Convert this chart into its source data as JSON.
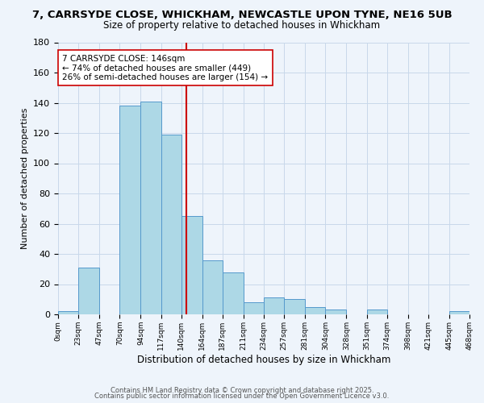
{
  "title1": "7, CARRSYDE CLOSE, WHICKHAM, NEWCASTLE UPON TYNE, NE16 5UB",
  "title2": "Size of property relative to detached houses in Whickham",
  "xlabel": "Distribution of detached houses by size in Whickham",
  "ylabel": "Number of detached properties",
  "bin_edges": [
    0,
    23,
    47,
    70,
    94,
    117,
    140,
    164,
    187,
    211,
    234,
    257,
    281,
    304,
    328,
    351,
    374,
    398,
    421,
    445,
    468
  ],
  "bin_counts": [
    2,
    31,
    0,
    138,
    141,
    119,
    65,
    36,
    28,
    8,
    11,
    10,
    5,
    3,
    0,
    3,
    0,
    0,
    0,
    2
  ],
  "bar_facecolor": "#add8e6",
  "bar_edgecolor": "#5599cc",
  "vline_x": 146,
  "vline_color": "#cc0000",
  "annotation_line1": "7 CARRSYDE CLOSE: 146sqm",
  "annotation_line2": "← 74% of detached houses are smaller (449)",
  "annotation_line3": "26% of semi-detached houses are larger (154) →",
  "annotation_box_edgecolor": "#cc0000",
  "annotation_box_facecolor": "#ffffff",
  "ylim": [
    0,
    180
  ],
  "yticks": [
    0,
    20,
    40,
    60,
    80,
    100,
    120,
    140,
    160,
    180
  ],
  "tick_labels": [
    "0sqm",
    "23sqm",
    "47sqm",
    "70sqm",
    "94sqm",
    "117sqm",
    "140sqm",
    "164sqm",
    "187sqm",
    "211sqm",
    "234sqm",
    "257sqm",
    "281sqm",
    "304sqm",
    "328sqm",
    "351sqm",
    "374sqm",
    "398sqm",
    "421sqm",
    "445sqm",
    "468sqm"
  ],
  "footer1": "Contains HM Land Registry data © Crown copyright and database right 2025.",
  "footer2": "Contains public sector information licensed under the Open Government Licence v3.0.",
  "bg_color": "#eef4fb",
  "grid_color": "#c8d8ea",
  "title1_fontsize": 9.5,
  "title2_fontsize": 8.5,
  "ylabel_fontsize": 8,
  "xlabel_fontsize": 8.5,
  "ytick_fontsize": 8,
  "xtick_fontsize": 6.5,
  "footer_fontsize": 6,
  "annot_fontsize": 7.5
}
